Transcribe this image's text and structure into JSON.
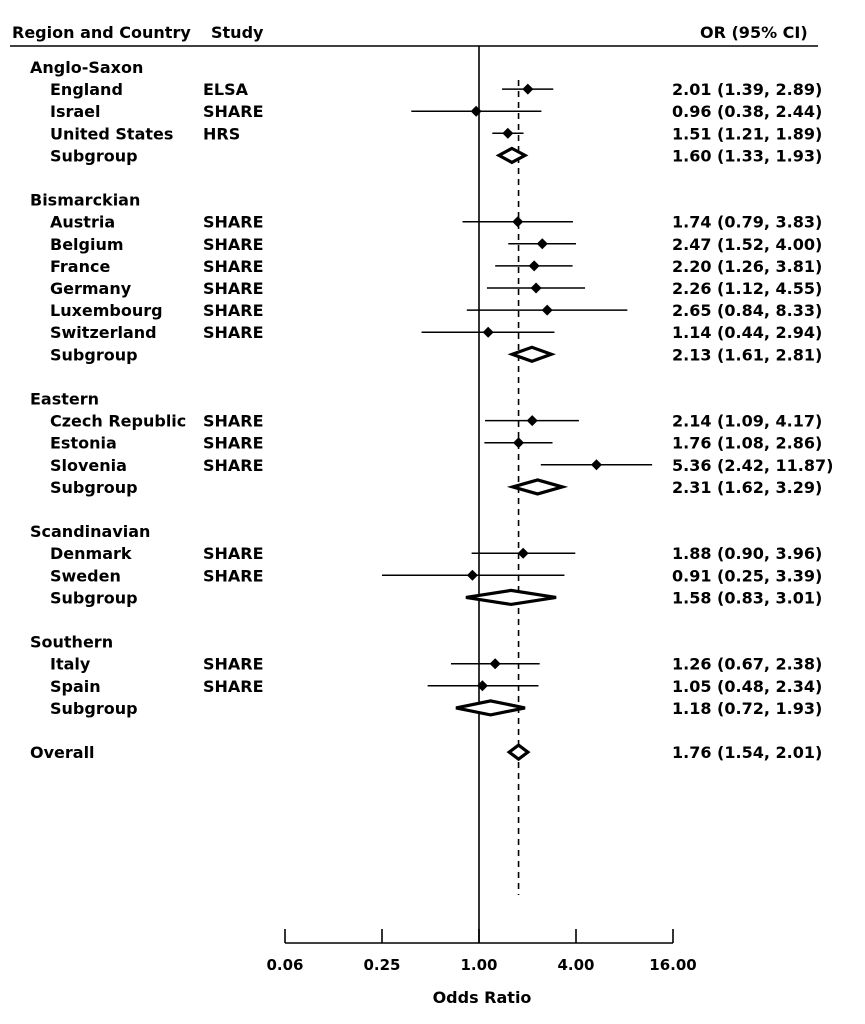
{
  "chart_data": {
    "type": "forest",
    "header": {
      "region": "Region and Country",
      "study": "Study",
      "or": "OR (95% CI)"
    },
    "xlabel": "Odds Ratio",
    "x_scale": "log2",
    "xlim": [
      0.0625,
      16
    ],
    "ticks": [
      {
        "value": 0.0625,
        "label": "0.06"
      },
      {
        "value": 0.25,
        "label": "0.25"
      },
      {
        "value": 1,
        "label": "1.00"
      },
      {
        "value": 4,
        "label": "4.00"
      },
      {
        "value": 16,
        "label": "16.00"
      }
    ],
    "null_value": 1,
    "reference_value": 1.76,
    "rows": [
      {
        "kind": "group",
        "label": "Anglo-Saxon"
      },
      {
        "kind": "study",
        "label": "England",
        "study": "ELSA",
        "or": 2.01,
        "lo": 1.39,
        "hi": 2.89,
        "text": "2.01 (1.39, 2.89)"
      },
      {
        "kind": "study",
        "label": "Israel",
        "study": "SHARE",
        "or": 0.96,
        "lo": 0.38,
        "hi": 2.44,
        "text": "0.96 (0.38, 2.44)"
      },
      {
        "kind": "study",
        "label": "United States",
        "study": "HRS",
        "or": 1.51,
        "lo": 1.21,
        "hi": 1.89,
        "text": "1.51 (1.21, 1.89)"
      },
      {
        "kind": "subgroup",
        "label": "Subgroup",
        "or": 1.6,
        "lo": 1.33,
        "hi": 1.93,
        "text": "1.60 (1.33, 1.93)"
      },
      {
        "kind": "gap"
      },
      {
        "kind": "group",
        "label": "Bismarckian"
      },
      {
        "kind": "study",
        "label": "Austria",
        "study": "SHARE",
        "or": 1.74,
        "lo": 0.79,
        "hi": 3.83,
        "text": "1.74 (0.79, 3.83)"
      },
      {
        "kind": "study",
        "label": "Belgium",
        "study": "SHARE",
        "or": 2.47,
        "lo": 1.52,
        "hi": 4.0,
        "text": "2.47 (1.52, 4.00)"
      },
      {
        "kind": "study",
        "label": "France",
        "study": "SHARE",
        "or": 2.2,
        "lo": 1.26,
        "hi": 3.81,
        "text": "2.20 (1.26, 3.81)"
      },
      {
        "kind": "study",
        "label": "Germany",
        "study": "SHARE",
        "or": 2.26,
        "lo": 1.12,
        "hi": 4.55,
        "text": "2.26 (1.12, 4.55)"
      },
      {
        "kind": "study",
        "label": "Luxembourg",
        "study": "SHARE",
        "or": 2.65,
        "lo": 0.84,
        "hi": 8.33,
        "text": "2.65 (0.84, 8.33)"
      },
      {
        "kind": "study",
        "label": "Switzerland",
        "study": "SHARE",
        "or": 1.14,
        "lo": 0.44,
        "hi": 2.94,
        "text": "1.14 (0.44, 2.94)"
      },
      {
        "kind": "subgroup",
        "label": "Subgroup",
        "or": 2.13,
        "lo": 1.61,
        "hi": 2.81,
        "text": "2.13 (1.61, 2.81)"
      },
      {
        "kind": "gap"
      },
      {
        "kind": "group",
        "label": "Eastern"
      },
      {
        "kind": "study",
        "label": "Czech Republic",
        "study": "SHARE",
        "or": 2.14,
        "lo": 1.09,
        "hi": 4.17,
        "text": "2.14 (1.09, 4.17)"
      },
      {
        "kind": "study",
        "label": "Estonia",
        "study": "SHARE",
        "or": 1.76,
        "lo": 1.08,
        "hi": 2.86,
        "text": "1.76 (1.08, 2.86)"
      },
      {
        "kind": "study",
        "label": "Slovenia",
        "study": "SHARE",
        "or": 5.36,
        "lo": 2.42,
        "hi": 11.87,
        "text": "5.36 (2.42, 11.87)"
      },
      {
        "kind": "subgroup",
        "label": "Subgroup",
        "or": 2.31,
        "lo": 1.62,
        "hi": 3.29,
        "text": "2.31 (1.62, 3.29)"
      },
      {
        "kind": "gap"
      },
      {
        "kind": "group",
        "label": "Scandinavian"
      },
      {
        "kind": "study",
        "label": "Denmark",
        "study": "SHARE",
        "or": 1.88,
        "lo": 0.9,
        "hi": 3.96,
        "text": "1.88 (0.90, 3.96)"
      },
      {
        "kind": "study",
        "label": "Sweden",
        "study": "SHARE",
        "or": 0.91,
        "lo": 0.25,
        "hi": 3.39,
        "text": "0.91 (0.25, 3.39)"
      },
      {
        "kind": "subgroup",
        "label": "Subgroup",
        "or": 1.58,
        "lo": 0.83,
        "hi": 3.01,
        "text": "1.58 (0.83, 3.01)"
      },
      {
        "kind": "gap"
      },
      {
        "kind": "group",
        "label": "Southern"
      },
      {
        "kind": "study",
        "label": "Italy",
        "study": "SHARE",
        "or": 1.26,
        "lo": 0.67,
        "hi": 2.38,
        "text": "1.26 (0.67, 2.38)"
      },
      {
        "kind": "study",
        "label": "Spain",
        "study": "SHARE",
        "or": 1.05,
        "lo": 0.48,
        "hi": 2.34,
        "text": "1.05 (0.48, 2.34)"
      },
      {
        "kind": "subgroup",
        "label": "Subgroup",
        "or": 1.18,
        "lo": 0.72,
        "hi": 1.93,
        "text": "1.18 (0.72, 1.93)"
      },
      {
        "kind": "gap"
      },
      {
        "kind": "overall",
        "label": "Overall",
        "or": 1.76,
        "lo": 1.54,
        "hi": 2.01,
        "text": "1.76 (1.54, 2.01)"
      }
    ],
    "grid": false,
    "legend": "none"
  }
}
